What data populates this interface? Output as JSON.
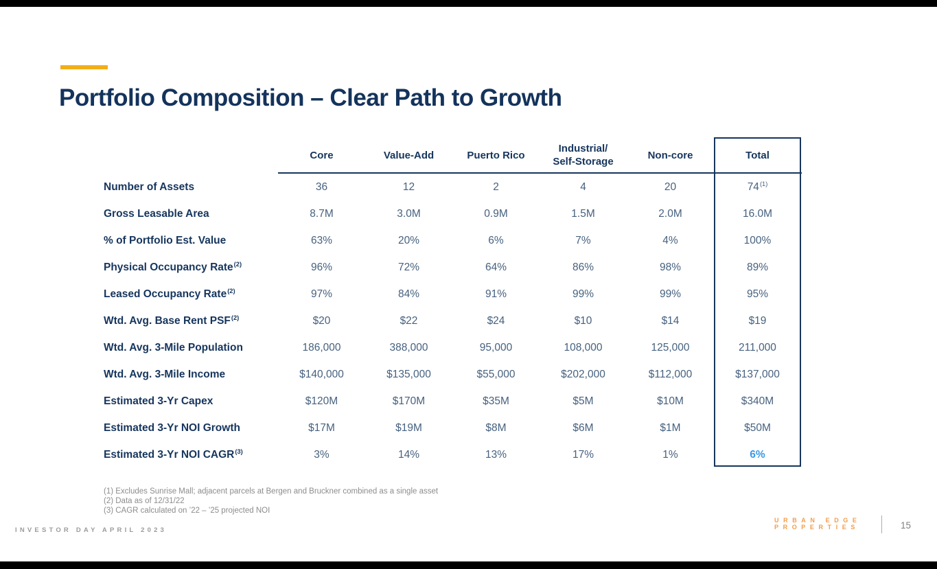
{
  "slide": {
    "title": "Portfolio Composition – Clear Path to Growth",
    "page_number": "15",
    "footer_left": "INVESTOR DAY APRIL 2023",
    "logo_line1": "URBAN EDGE",
    "logo_line2": "PROPERTIES"
  },
  "colors": {
    "navy_text": "#16355D",
    "value_slate": "#46617F",
    "accent_yellow": "#F2AE19",
    "highlight_blue": "#3B99E8",
    "logo_orange": "#F29C4B",
    "footer_gray": "#9B9B9B",
    "footnote_gray": "#8C8C8C",
    "letterbox_black": "#000000"
  },
  "table": {
    "columns": [
      "Core",
      "Value-Add",
      "Puerto Rico",
      "Industrial/\nSelf-Storage",
      "Non-core",
      "Total"
    ],
    "rows": [
      {
        "label": "Number of Assets",
        "sup": "",
        "values": [
          "36",
          "12",
          "2",
          "4",
          "20"
        ],
        "total": "74",
        "total_sup": "(1)",
        "highlight": false
      },
      {
        "label": "Gross Leasable Area",
        "sup": "",
        "values": [
          "8.7M",
          "3.0M",
          "0.9M",
          "1.5M",
          "2.0M"
        ],
        "total": "16.0M",
        "total_sup": "",
        "highlight": false
      },
      {
        "label": "% of Portfolio Est. Value",
        "sup": "",
        "values": [
          "63%",
          "20%",
          "6%",
          "7%",
          "4%"
        ],
        "total": "100%",
        "total_sup": "",
        "highlight": false
      },
      {
        "label": "Physical Occupancy Rate",
        "sup": "(2)",
        "values": [
          "96%",
          "72%",
          "64%",
          "86%",
          "98%"
        ],
        "total": "89%",
        "total_sup": "",
        "highlight": false
      },
      {
        "label": "Leased Occupancy Rate",
        "sup": "(2)",
        "values": [
          "97%",
          "84%",
          "91%",
          "99%",
          "99%"
        ],
        "total": "95%",
        "total_sup": "",
        "highlight": false
      },
      {
        "label": "Wtd. Avg. Base Rent PSF",
        "sup": "(2)",
        "values": [
          "$20",
          "$22",
          "$24",
          "$10",
          "$14"
        ],
        "total": "$19",
        "total_sup": "",
        "highlight": false
      },
      {
        "label": "Wtd. Avg. 3-Mile Population",
        "sup": "",
        "values": [
          "186,000",
          "388,000",
          "95,000",
          "108,000",
          "125,000"
        ],
        "total": "211,000",
        "total_sup": "",
        "highlight": false
      },
      {
        "label": "Wtd. Avg. 3-Mile Income",
        "sup": "",
        "values": [
          "$140,000",
          "$135,000",
          "$55,000",
          "$202,000",
          "$112,000"
        ],
        "total": "$137,000",
        "total_sup": "",
        "highlight": false
      },
      {
        "label": "Estimated 3-Yr Capex",
        "sup": "",
        "values": [
          "$120M",
          "$170M",
          "$35M",
          "$5M",
          "$10M"
        ],
        "total": "$340M",
        "total_sup": "",
        "highlight": false
      },
      {
        "label": "Estimated 3-Yr NOI Growth",
        "sup": "",
        "values": [
          "$17M",
          "$19M",
          "$8M",
          "$6M",
          "$1M"
        ],
        "total": "$50M",
        "total_sup": "",
        "highlight": false
      },
      {
        "label": "Estimated 3-Yr NOI CAGR",
        "sup": "(3)",
        "values": [
          "3%",
          "14%",
          "13%",
          "17%",
          "1%"
        ],
        "total": "6%",
        "total_sup": "",
        "highlight": true
      }
    ]
  },
  "footnotes": [
    "(1) Excludes Sunrise Mall; adjacent parcels at Bergen and Bruckner combined as a single asset",
    "(2) Data as of 12/31/22",
    "(3) CAGR calculated on ’22 – ’25 projected NOI"
  ]
}
